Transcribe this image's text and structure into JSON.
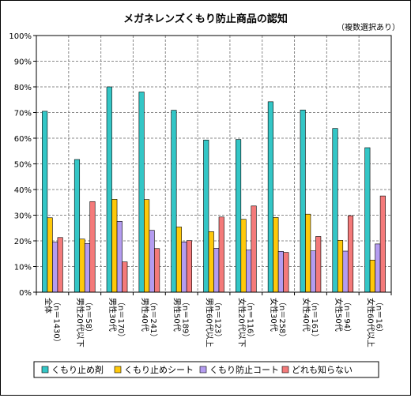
{
  "chart_data": {
    "type": "bar",
    "title": "メガネレンズくもり防止商品の認知",
    "subtitle": "（複数選択あり）",
    "ylim": [
      0,
      100
    ],
    "yticks": [
      0,
      10,
      20,
      30,
      40,
      50,
      60,
      70,
      80,
      90,
      100
    ],
    "ytick_labels": [
      "0%",
      "10%",
      "20%",
      "30%",
      "40%",
      "50%",
      "60%",
      "70%",
      "80%",
      "90%",
      "100%"
    ],
    "grid": true,
    "legend_position": "bottom",
    "categories": [
      "全体（n＝1430）",
      "男性20代以下（n＝58）",
      "男性30代（n＝170）",
      "男性40代（n＝241）",
      "男性50代（n＝189）",
      "男性60代以上（n＝123）",
      "女性20代以下（n＝116）",
      "女性30代（n＝258）",
      "女性40代（n＝161）",
      "女性50代（n＝94）",
      "女性60代以上（n＝16）"
    ],
    "series": [
      {
        "name": "くもり止め剤",
        "color": "#33c6c6",
        "values": [
          70.5,
          51.7,
          80.0,
          78.0,
          70.9,
          59.3,
          59.5,
          74.2,
          71.0,
          63.8,
          56.3
        ]
      },
      {
        "name": "くもり止めシート",
        "color": "#ffc90a",
        "values": [
          29.0,
          20.7,
          36.2,
          36.1,
          25.4,
          23.6,
          28.4,
          29.1,
          30.4,
          20.2,
          12.5
        ]
      },
      {
        "name": "くもり防止コート",
        "color": "#b49cf0",
        "values": [
          19.5,
          19.0,
          27.6,
          24.1,
          19.6,
          17.1,
          16.4,
          15.9,
          16.1,
          16.0,
          18.8
        ]
      },
      {
        "name": "どれも知らない",
        "color": "#f47a7a",
        "values": [
          21.3,
          35.3,
          11.8,
          17.0,
          20.1,
          29.3,
          33.6,
          15.5,
          21.7,
          29.8,
          37.5
        ]
      }
    ]
  }
}
